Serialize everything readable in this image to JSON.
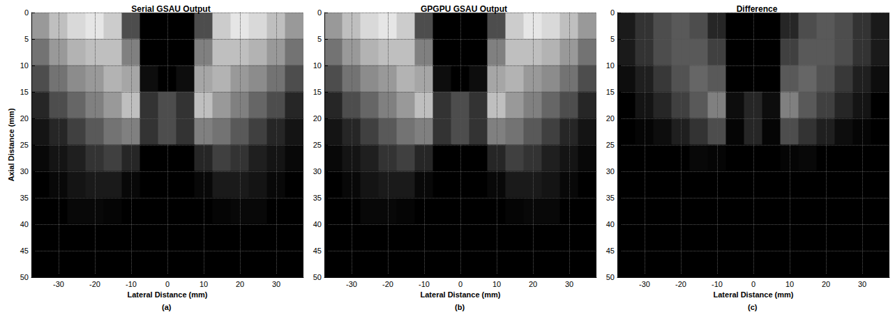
{
  "chart_data": [
    {
      "type": "heatmap",
      "title": "Serial GSAU Output",
      "x_label": "Lateral Distance (mm)",
      "y_label": "Axial Distance (mm)",
      "panel_label": "(a)",
      "xlim": [
        -37.5,
        37.5
      ],
      "ylim": [
        0,
        50
      ],
      "xticks": [
        -30,
        -20,
        -10,
        0,
        10,
        20,
        30
      ],
      "yticks": [
        0,
        5,
        10,
        15,
        20,
        25,
        30,
        35,
        40,
        45,
        50
      ],
      "grid": true,
      "x": [
        -35,
        -30,
        -25,
        -20,
        -15,
        -10,
        -5,
        0,
        5,
        10,
        15,
        20,
        25,
        30,
        35
      ],
      "y": [
        2.5,
        7.5,
        12.5,
        17.5,
        22.5,
        27.5,
        32.5,
        37.5,
        42.5,
        47.5
      ],
      "cells": [
        [
          0.6,
          0.75,
          0.85,
          0.9,
          0.8,
          0.3,
          0,
          0,
          0,
          0.3,
          0.8,
          0.9,
          0.85,
          0.75,
          0.6
        ],
        [
          0.45,
          0.6,
          0.7,
          0.75,
          0.75,
          0.5,
          0,
          0,
          0,
          0.5,
          0.75,
          0.75,
          0.7,
          0.6,
          0.45
        ],
        [
          0.3,
          0.45,
          0.55,
          0.6,
          0.7,
          0.65,
          0.05,
          0,
          0.05,
          0.65,
          0.7,
          0.6,
          0.55,
          0.45,
          0.3
        ],
        [
          0.15,
          0.3,
          0.4,
          0.5,
          0.6,
          0.75,
          0.2,
          0.3,
          0.2,
          0.75,
          0.6,
          0.5,
          0.4,
          0.3,
          0.15
        ],
        [
          0.08,
          0.15,
          0.25,
          0.35,
          0.45,
          0.5,
          0.2,
          0.3,
          0.2,
          0.5,
          0.45,
          0.35,
          0.25,
          0.15,
          0.08
        ],
        [
          0.03,
          0.08,
          0.12,
          0.2,
          0.25,
          0.15,
          0,
          0,
          0,
          0.15,
          0.25,
          0.2,
          0.12,
          0.08,
          0.03
        ],
        [
          0,
          0.03,
          0.08,
          0.1,
          0.1,
          0.03,
          0,
          0,
          0,
          0.03,
          0.1,
          0.1,
          0.08,
          0.03,
          0
        ],
        [
          0,
          0,
          0.03,
          0.03,
          0.02,
          0,
          0,
          0,
          0,
          0,
          0.02,
          0.03,
          0.03,
          0,
          0
        ],
        [
          0,
          0,
          0,
          0,
          0,
          0,
          0,
          0,
          0,
          0,
          0,
          0,
          0,
          0,
          0
        ],
        [
          0,
          0,
          0,
          0,
          0,
          0,
          0,
          0,
          0,
          0,
          0,
          0,
          0,
          0,
          0
        ]
      ]
    },
    {
      "type": "heatmap",
      "title": "GPGPU GSAU Output",
      "x_label": "Lateral Distance (mm)",
      "panel_label": "(b)",
      "xlim": [
        -37.5,
        37.5
      ],
      "ylim": [
        0,
        50
      ],
      "xticks": [
        -30,
        -20,
        -10,
        0,
        10,
        20,
        30
      ],
      "yticks": [
        0,
        5,
        10,
        15,
        20,
        25,
        30,
        35,
        40,
        45,
        50
      ],
      "grid": true,
      "x": [
        -35,
        -30,
        -25,
        -20,
        -15,
        -10,
        -5,
        0,
        5,
        10,
        15,
        20,
        25,
        30,
        35
      ],
      "y": [
        2.5,
        7.5,
        12.5,
        17.5,
        22.5,
        27.5,
        32.5,
        37.5,
        42.5,
        47.5
      ],
      "cells": [
        [
          0.6,
          0.75,
          0.85,
          0.9,
          0.8,
          0.3,
          0,
          0,
          0,
          0.3,
          0.8,
          0.9,
          0.85,
          0.75,
          0.6
        ],
        [
          0.45,
          0.6,
          0.7,
          0.75,
          0.75,
          0.5,
          0,
          0,
          0,
          0.5,
          0.75,
          0.75,
          0.7,
          0.6,
          0.45
        ],
        [
          0.3,
          0.45,
          0.55,
          0.6,
          0.7,
          0.65,
          0.05,
          0,
          0.05,
          0.65,
          0.7,
          0.6,
          0.55,
          0.45,
          0.3
        ],
        [
          0.15,
          0.3,
          0.4,
          0.5,
          0.6,
          0.75,
          0.2,
          0.3,
          0.2,
          0.75,
          0.6,
          0.5,
          0.4,
          0.3,
          0.15
        ],
        [
          0.08,
          0.15,
          0.25,
          0.35,
          0.45,
          0.5,
          0.2,
          0.3,
          0.2,
          0.5,
          0.45,
          0.35,
          0.25,
          0.15,
          0.08
        ],
        [
          0.03,
          0.08,
          0.12,
          0.2,
          0.25,
          0.15,
          0,
          0,
          0,
          0.15,
          0.25,
          0.2,
          0.12,
          0.08,
          0.03
        ],
        [
          0,
          0.03,
          0.08,
          0.1,
          0.1,
          0.03,
          0,
          0,
          0,
          0.03,
          0.1,
          0.1,
          0.08,
          0.03,
          0
        ],
        [
          0,
          0,
          0.03,
          0.03,
          0.02,
          0,
          0,
          0,
          0,
          0,
          0.02,
          0.03,
          0.03,
          0,
          0
        ],
        [
          0,
          0,
          0,
          0,
          0,
          0,
          0,
          0,
          0,
          0,
          0,
          0,
          0,
          0,
          0
        ],
        [
          0,
          0,
          0,
          0,
          0,
          0,
          0,
          0,
          0,
          0,
          0,
          0,
          0,
          0,
          0
        ]
      ]
    },
    {
      "type": "heatmap",
      "title": "Difference",
      "x_label": "Lateral Distance (mm)",
      "panel_label": "(c)",
      "xlim": [
        -37.5,
        37.5
      ],
      "ylim": [
        0,
        50
      ],
      "xticks": [
        -30,
        -20,
        -10,
        0,
        10,
        20,
        30
      ],
      "yticks": [
        0,
        5,
        10,
        15,
        20,
        25,
        30,
        35,
        40,
        45,
        50
      ],
      "grid": true,
      "x": [
        -35,
        -30,
        -25,
        -20,
        -15,
        -10,
        -5,
        0,
        5,
        10,
        15,
        20,
        25,
        30,
        35
      ],
      "y": [
        2.5,
        7.5,
        12.5,
        17.5,
        22.5,
        27.5,
        32.5,
        37.5,
        42.5,
        47.5
      ],
      "cells": [
        [
          0.1,
          0.2,
          0.3,
          0.35,
          0.3,
          0.15,
          0,
          0,
          0,
          0.15,
          0.3,
          0.35,
          0.3,
          0.2,
          0.1
        ],
        [
          0.1,
          0.2,
          0.3,
          0.35,
          0.35,
          0.25,
          0,
          0,
          0,
          0.25,
          0.35,
          0.35,
          0.3,
          0.2,
          0.1
        ],
        [
          0.05,
          0.12,
          0.22,
          0.32,
          0.4,
          0.35,
          0,
          0,
          0,
          0.35,
          0.4,
          0.32,
          0.22,
          0.12,
          0.05
        ],
        [
          0,
          0.08,
          0.15,
          0.25,
          0.35,
          0.5,
          0.05,
          0.15,
          0.05,
          0.5,
          0.35,
          0.25,
          0.15,
          0.08,
          0
        ],
        [
          0,
          0.02,
          0.05,
          0.12,
          0.2,
          0.3,
          0.02,
          0.15,
          0.02,
          0.3,
          0.2,
          0.12,
          0.05,
          0.02,
          0
        ],
        [
          0,
          0,
          0,
          0,
          0.03,
          0.02,
          0,
          0,
          0,
          0.02,
          0.03,
          0,
          0,
          0,
          0
        ],
        [
          0,
          0,
          0,
          0,
          0,
          0,
          0,
          0,
          0,
          0,
          0,
          0,
          0,
          0,
          0
        ],
        [
          0,
          0,
          0,
          0,
          0,
          0,
          0,
          0,
          0,
          0,
          0,
          0,
          0,
          0,
          0
        ],
        [
          0,
          0,
          0,
          0,
          0,
          0,
          0,
          0,
          0,
          0,
          0,
          0,
          0,
          0,
          0
        ],
        [
          0,
          0,
          0,
          0,
          0,
          0,
          0,
          0,
          0,
          0,
          0,
          0,
          0,
          0,
          0
        ]
      ]
    }
  ]
}
